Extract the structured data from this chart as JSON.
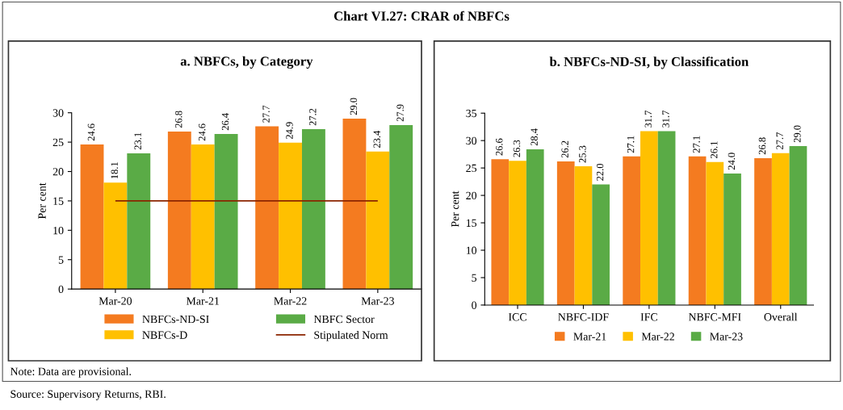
{
  "chart_data": [
    {
      "type": "bar",
      "title": "a. NBFCs, by Category",
      "ylabel": "Per cent",
      "annotations": [
        "Chart VI.27: CRAR of NBFCs",
        "Note: Data are provisional.",
        "Source: Supervisory Returns, RBI."
      ],
      "categories": [
        "Mar-20",
        "Mar-21",
        "Mar-22",
        "Mar-23"
      ],
      "series": [
        {
          "name": "NBFCs-ND-SI",
          "color": "#f47b20",
          "values": [
            24.6,
            26.8,
            27.7,
            29.0
          ],
          "value_labels": [
            "24.6",
            "26.8",
            "27.7",
            "29.0"
          ]
        },
        {
          "name": "NBFCs-D",
          "color": "#ffc000",
          "values": [
            18.1,
            24.6,
            24.9,
            23.4
          ],
          "value_labels": [
            "18.1",
            "24.6",
            "24.9",
            "23.4"
          ]
        },
        {
          "name": "NBFC Sector",
          "color": "#5aab46",
          "values": [
            23.1,
            26.4,
            27.2,
            27.9
          ],
          "value_labels": [
            "23.1",
            "26.4",
            "27.2",
            "27.9"
          ]
        }
      ],
      "ref_lines": [
        {
          "axis": "y",
          "value": 15,
          "label": "Stipulated Norm",
          "color": "#8b2500"
        }
      ],
      "ylim": [
        0,
        30
      ],
      "yticks": [
        0,
        5,
        10,
        15,
        20,
        25,
        30
      ],
      "grid": false,
      "legend": "bottom"
    },
    {
      "type": "bar",
      "title": "b. NBFCs-ND-SI, by Classification",
      "ylabel": "Per cent",
      "categories": [
        "ICC",
        "NBFC-IDF",
        "IFC",
        "NBFC-MFI",
        "Overall"
      ],
      "series": [
        {
          "name": "Mar-21",
          "color": "#f47b20",
          "values": [
            26.6,
            26.2,
            27.1,
            27.1,
            26.8
          ],
          "value_labels": [
            "26.6",
            "26.2",
            "27.1",
            "27.1",
            "26.8"
          ]
        },
        {
          "name": "Mar-22",
          "color": "#ffc000",
          "values": [
            26.3,
            25.3,
            31.7,
            26.1,
            27.7
          ],
          "value_labels": [
            "26.3",
            "25.3",
            "31.7",
            "26.1",
            "27.7"
          ]
        },
        {
          "name": "Mar-23",
          "color": "#5aab46",
          "values": [
            28.4,
            22.0,
            31.7,
            24.0,
            29.0
          ],
          "value_labels": [
            "28.4",
            "22.0",
            "31.7",
            "24.0",
            "29.0"
          ]
        }
      ],
      "ylim": [
        0,
        35
      ],
      "yticks": [
        0,
        5,
        10,
        15,
        20,
        25,
        30,
        35
      ],
      "grid": false,
      "legend": "bottom"
    }
  ]
}
